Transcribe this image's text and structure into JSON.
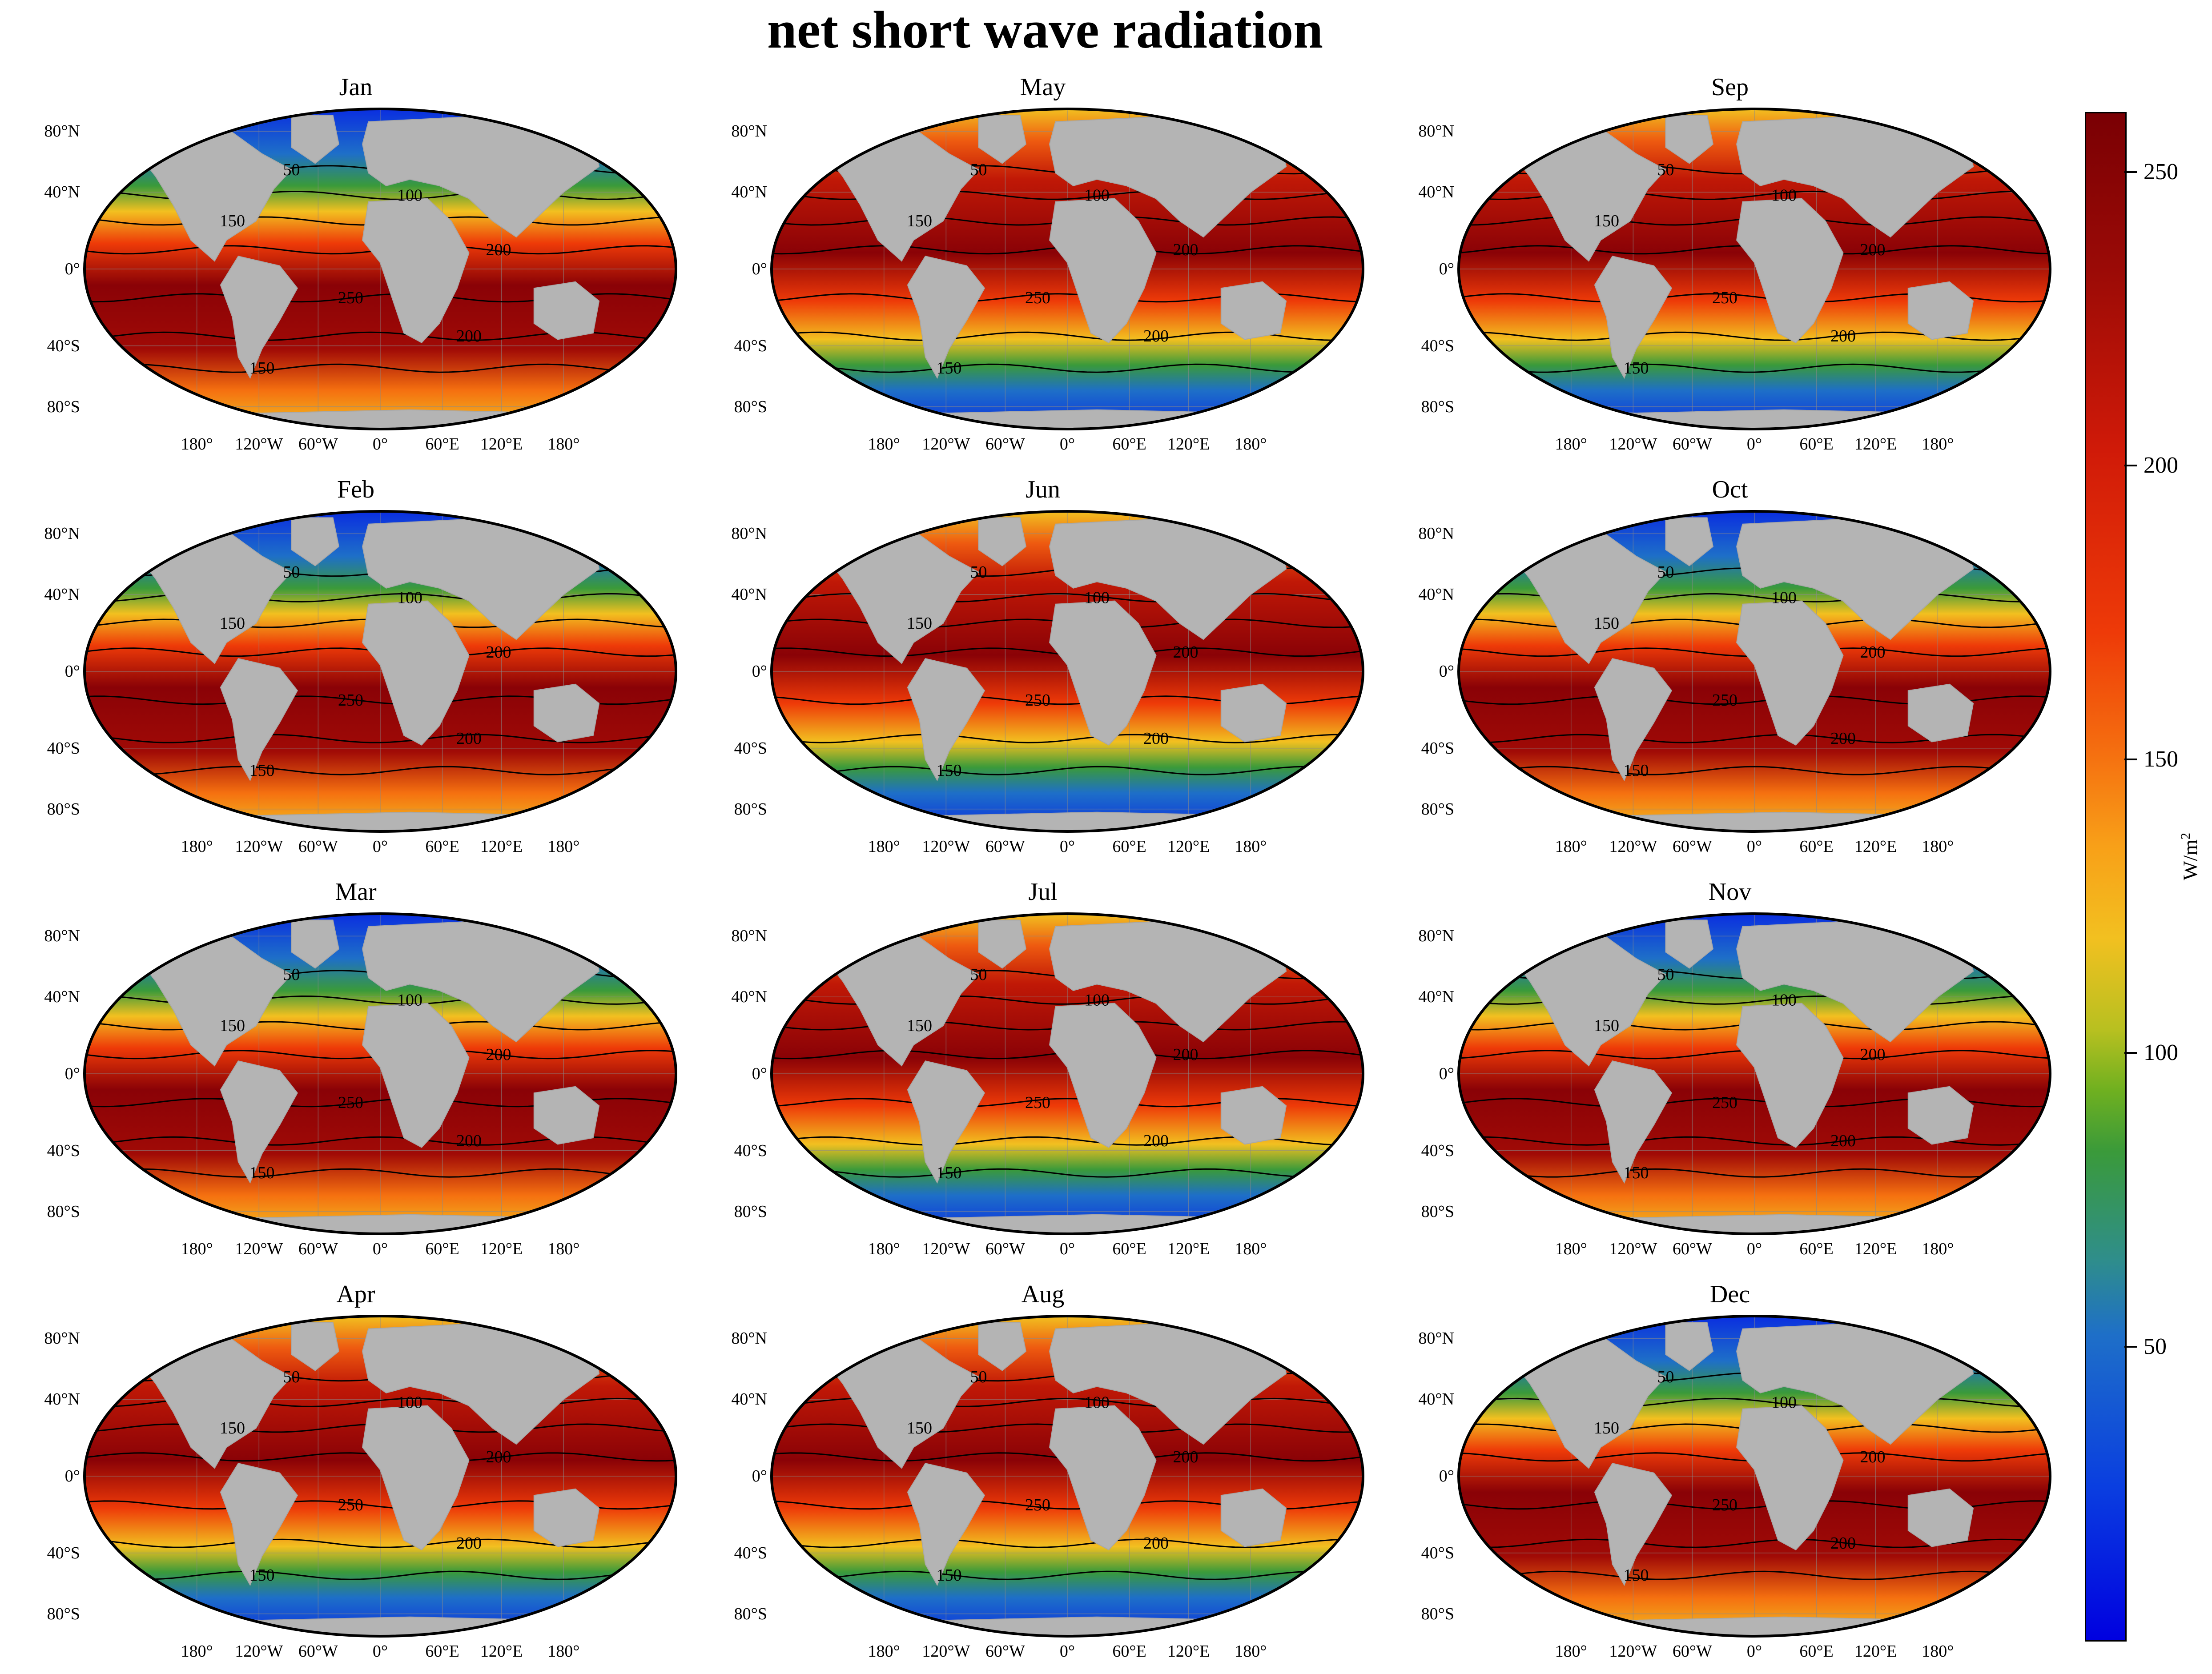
{
  "title": "net short wave radiation",
  "colors": {
    "land": "#b4b4b4",
    "ocean_low": "#0a2ee0",
    "ocean_mid": "#f2c020",
    "ocean_high": "#8a0206"
  },
  "panels": [
    {
      "month": "Jan"
    },
    {
      "month": "May"
    },
    {
      "month": "Sep"
    },
    {
      "month": "Feb"
    },
    {
      "month": "Jun"
    },
    {
      "month": "Oct"
    },
    {
      "month": "Mar"
    },
    {
      "month": "Jul"
    },
    {
      "month": "Nov"
    },
    {
      "month": "Apr"
    },
    {
      "month": "Aug"
    },
    {
      "month": "Dec"
    }
  ],
  "latitude_labels": [
    "80°N",
    "40°N",
    "0°",
    "40°S",
    "80°S"
  ],
  "longitude_labels": [
    "180°",
    "120°W",
    "60°W",
    "0°",
    "60°E",
    "120°E",
    "180°"
  ],
  "contour_labels": [
    "50",
    "100",
    "150",
    "200",
    "250"
  ],
  "colorbar": {
    "unit_base": "W/m",
    "unit_exp": "2",
    "ticks": [
      "50",
      "100",
      "150",
      "200",
      "250"
    ]
  }
}
